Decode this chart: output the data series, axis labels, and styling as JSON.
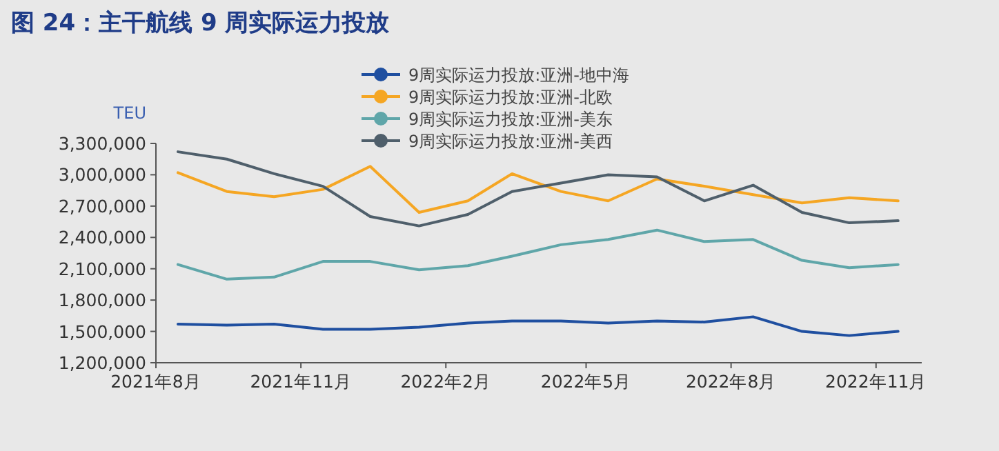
{
  "chart_data": {
    "type": "line",
    "title": "图 24：主干航线 9 周实际运力投放",
    "ylabel": "TEU",
    "x": [
      "2021-08-15",
      "2021-09-15",
      "2021-10-15",
      "2021-11-15",
      "2021-12-15",
      "2022-01-15",
      "2022-02-15",
      "2022-03-15",
      "2022-04-15",
      "2022-05-15",
      "2022-06-15",
      "2022-07-15",
      "2022-08-15",
      "2022-09-15",
      "2022-10-15",
      "2022-11-15"
    ],
    "series": [
      {
        "name": "9周实际运力投放:亚洲-地中海",
        "color": "#1f4fa0",
        "values": [
          1570000,
          1560000,
          1570000,
          1520000,
          1520000,
          1540000,
          1580000,
          1600000,
          1600000,
          1580000,
          1600000,
          1590000,
          1640000,
          1500000,
          1460000,
          1500000
        ]
      },
      {
        "name": "9周实际运力投放:亚洲-北欧",
        "color": "#f5a623",
        "values": [
          3020000,
          2840000,
          2790000,
          2860000,
          3080000,
          2640000,
          2750000,
          3010000,
          2840000,
          2750000,
          2960000,
          2890000,
          2810000,
          2730000,
          2780000,
          2750000
        ]
      },
      {
        "name": "9周实际运力投放:亚洲-美东",
        "color": "#5fa6a9",
        "values": [
          2140000,
          2000000,
          2020000,
          2170000,
          2170000,
          2090000,
          2130000,
          2220000,
          2330000,
          2380000,
          2470000,
          2360000,
          2380000,
          2180000,
          2110000,
          2140000
        ]
      },
      {
        "name": "9周实际运力投放:亚洲-美西",
        "color": "#4f5f6b",
        "values": [
          3220000,
          3150000,
          3010000,
          2890000,
          2600000,
          2510000,
          2620000,
          2840000,
          2920000,
          3000000,
          2980000,
          2750000,
          2900000,
          2640000,
          2540000,
          2560000
        ]
      }
    ],
    "xlim": [
      "2021-08-01",
      "2022-11-30"
    ],
    "xticks": [
      {
        "value": "2021-08-01",
        "label": "2021年8月"
      },
      {
        "value": "2021-11-01",
        "label": "2021年11月"
      },
      {
        "value": "2022-02-01",
        "label": "2022年2月"
      },
      {
        "value": "2022-05-01",
        "label": "2022年5月"
      },
      {
        "value": "2022-08-01",
        "label": "2022年8月"
      },
      {
        "value": "2022-11-01",
        "label": "2022年11月"
      }
    ],
    "ylim": [
      1200000,
      3300000
    ],
    "yticks": [
      {
        "value": 1200000,
        "label": "1,200,000"
      },
      {
        "value": 1500000,
        "label": "1,500,000"
      },
      {
        "value": 1800000,
        "label": "1,800,000"
      },
      {
        "value": 2100000,
        "label": "2,100,000"
      },
      {
        "value": 2400000,
        "label": "2,400,000"
      },
      {
        "value": 2700000,
        "label": "2,700,000"
      },
      {
        "value": 3000000,
        "label": "3,000,000"
      },
      {
        "value": 3300000,
        "label": "3,300,000"
      }
    ],
    "grid": false,
    "legend": "top",
    "marker": "none",
    "line_style": "solid"
  }
}
